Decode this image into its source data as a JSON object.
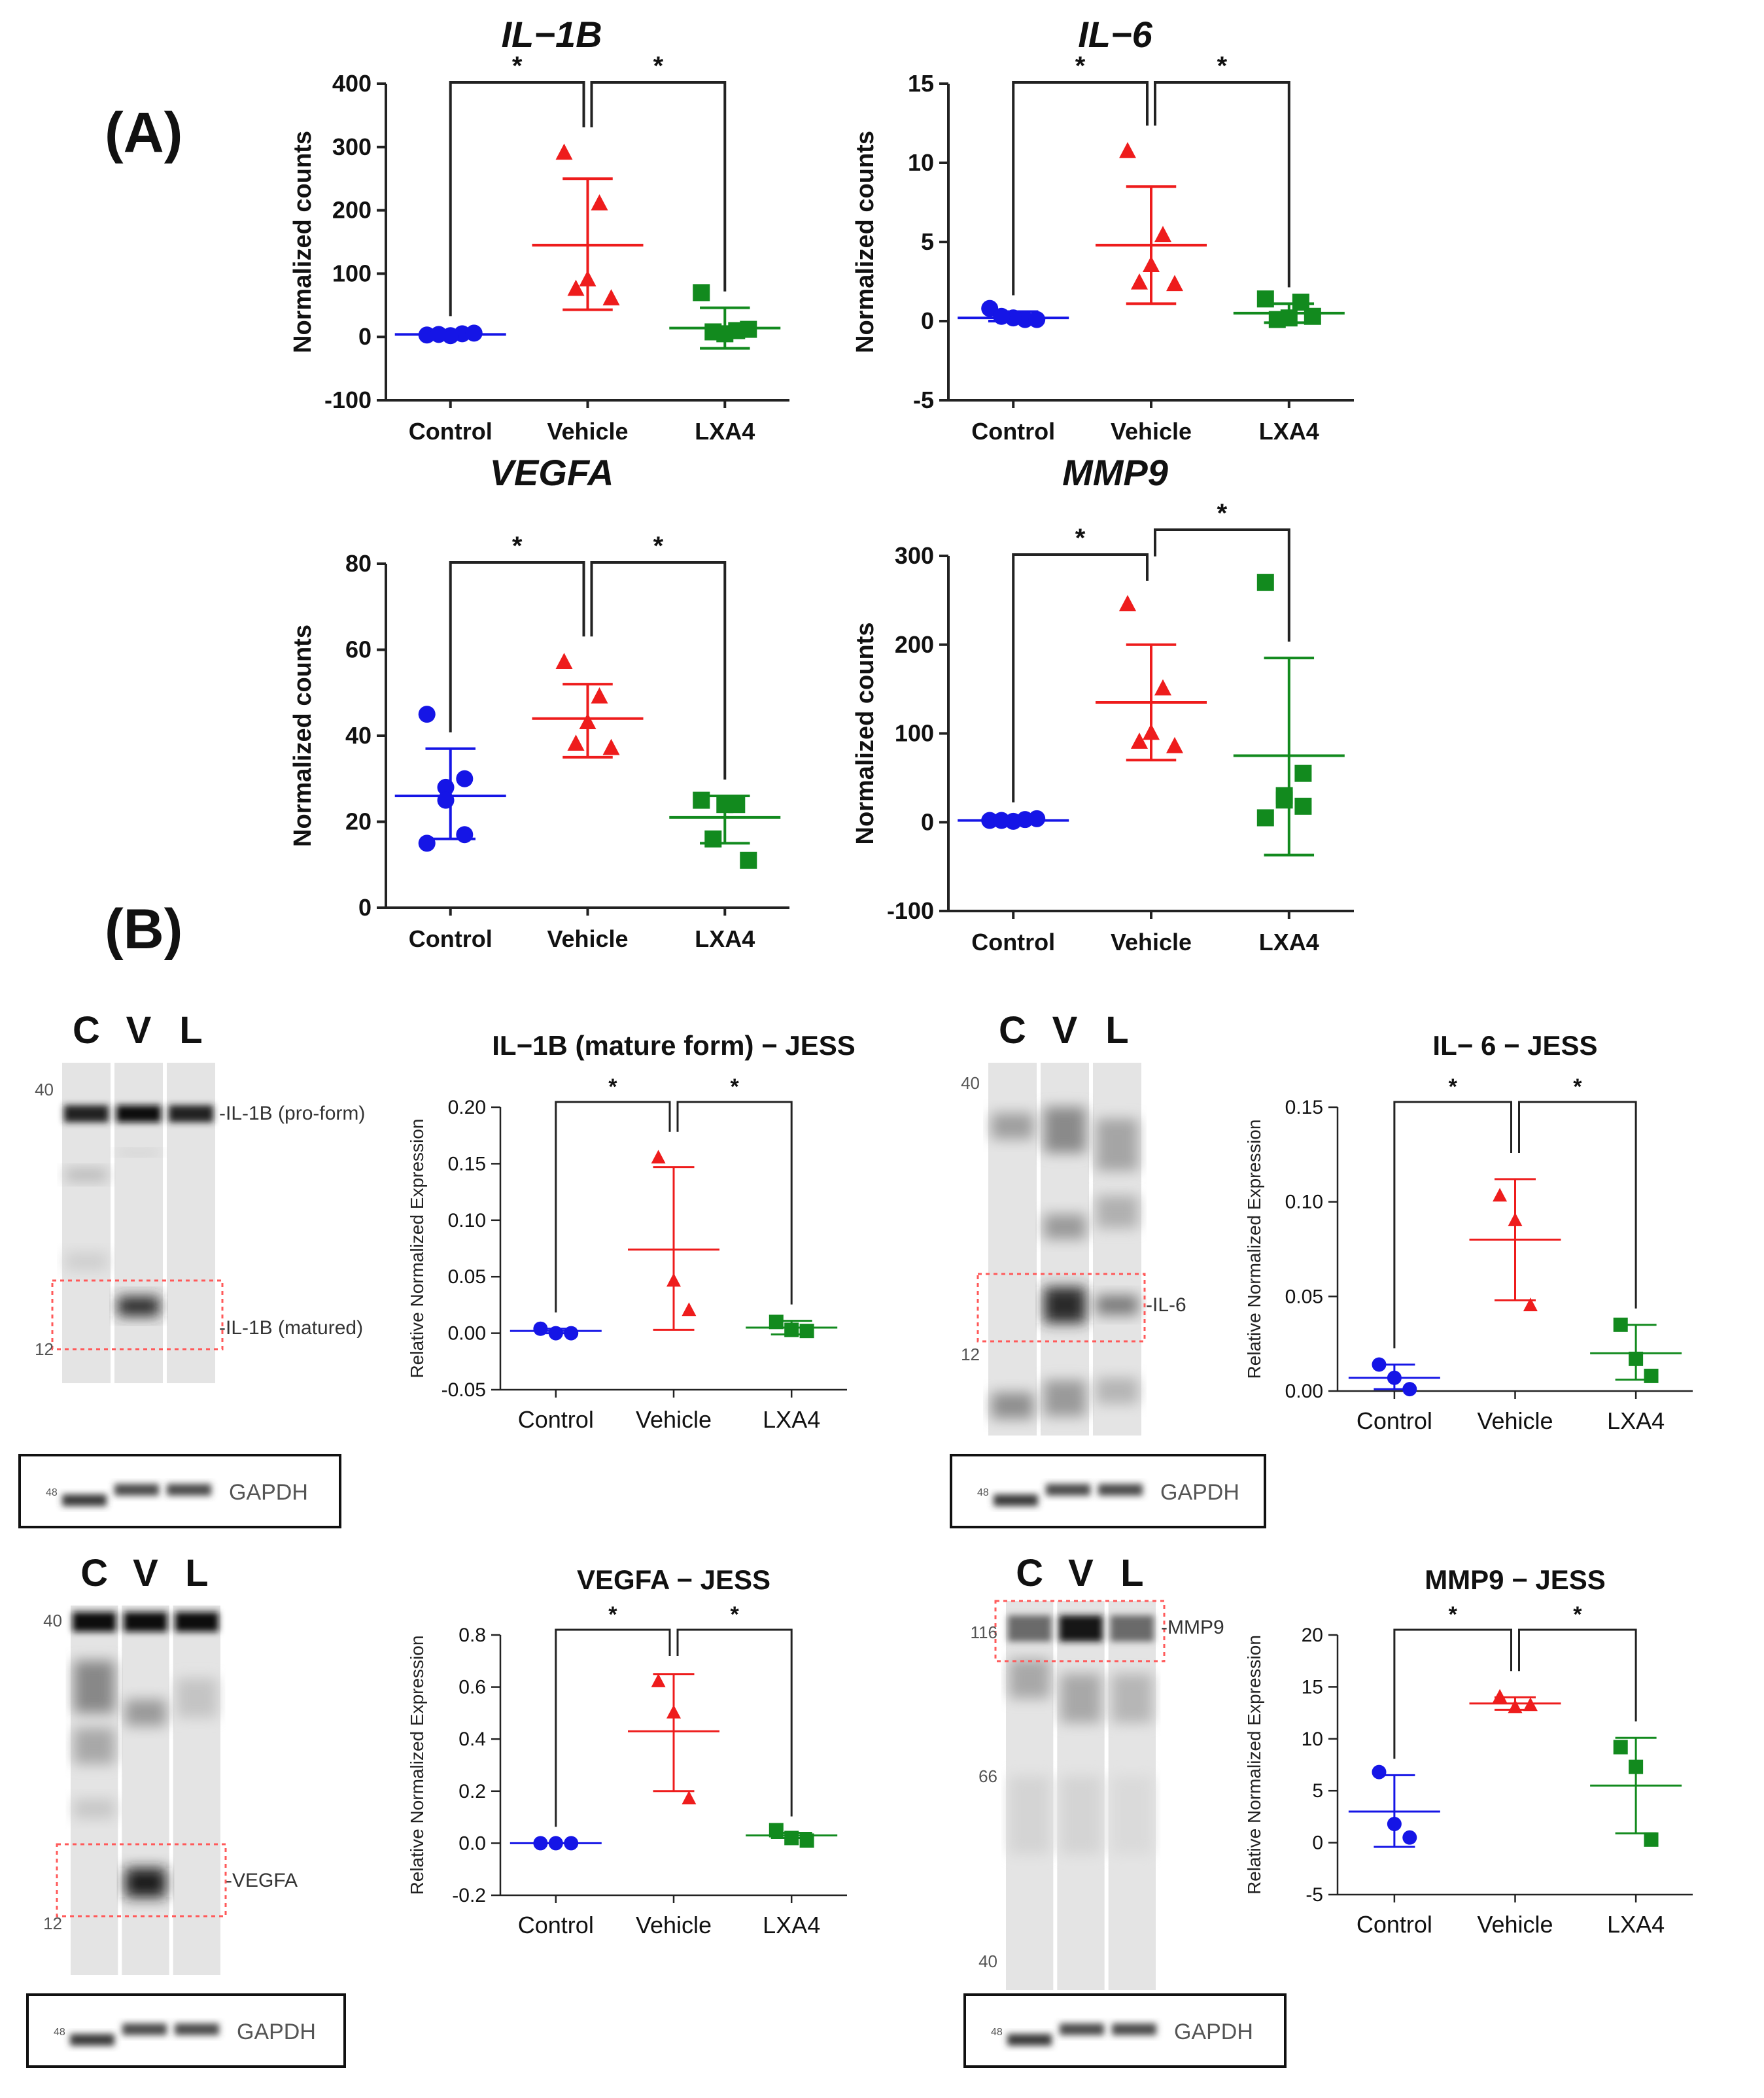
{
  "panels": {
    "a": "(A)",
    "b": "(B)"
  },
  "colors": {
    "control": "#1515e6",
    "vehicle": "#ee1c1c",
    "lxa4": "#128a1e",
    "axis": "#222222"
  },
  "significance": "*",
  "chart_data": [
    {
      "type": "scatter",
      "panel": "A",
      "title": "IL−1B",
      "ylabel": "Normalized counts",
      "categories": [
        "Control",
        "Vehicle",
        "LXA4"
      ],
      "ylim": [
        -100,
        400
      ],
      "yticks": [
        -100,
        0,
        100,
        200,
        300,
        400
      ],
      "series": [
        {
          "name": "Control",
          "shape": "circle",
          "color": "#1515e6",
          "points": [
            3,
            5,
            2,
            4,
            6
          ],
          "mean": 4,
          "err_lo": 2,
          "err_hi": 7
        },
        {
          "name": "Vehicle",
          "shape": "triangle",
          "color": "#ee1c1c",
          "points": [
            290,
            210,
            90,
            75,
            60
          ],
          "mean": 145,
          "err_lo": 43,
          "err_hi": 250
        },
        {
          "name": "LXA4",
          "shape": "square",
          "color": "#128a1e",
          "points": [
            70,
            10,
            5,
            8,
            12
          ],
          "mean": 14,
          "err_lo": -18,
          "err_hi": 46
        }
      ],
      "brackets": [
        [
          "Control",
          "Vehicle"
        ],
        [
          "Vehicle",
          "LXA4"
        ]
      ]
    },
    {
      "type": "scatter",
      "panel": "A",
      "title": "IL−6",
      "ylabel": "Normalized counts",
      "categories": [
        "Control",
        "Vehicle",
        "LXA4"
      ],
      "ylim": [
        -5,
        15
      ],
      "yticks": [
        -5,
        0,
        5,
        10,
        15
      ],
      "series": [
        {
          "name": "Control",
          "shape": "circle",
          "color": "#1515e6",
          "points": [
            0.8,
            0.1,
            0.2,
            0.3,
            0.1
          ],
          "mean": 0.2,
          "err_lo": 0.0,
          "err_hi": 0.6
        },
        {
          "name": "Vehicle",
          "shape": "triangle",
          "color": "#ee1c1c",
          "points": [
            10.7,
            5.4,
            3.5,
            2.4,
            2.3
          ],
          "mean": 4.8,
          "err_lo": 1.1,
          "err_hi": 8.5
        },
        {
          "name": "LXA4",
          "shape": "square",
          "color": "#128a1e",
          "points": [
            1.4,
            1.2,
            0.2,
            0.1,
            0.3
          ],
          "mean": 0.5,
          "err_lo": -0.1,
          "err_hi": 1.1
        }
      ],
      "brackets": [
        [
          "Control",
          "Vehicle"
        ],
        [
          "Vehicle",
          "LXA4"
        ]
      ]
    },
    {
      "type": "scatter",
      "panel": "A",
      "title": "VEGFA",
      "ylabel": "Normalized counts",
      "categories": [
        "Control",
        "Vehicle",
        "LXA4"
      ],
      "ylim": [
        0,
        80
      ],
      "yticks": [
        0,
        20,
        40,
        60,
        80
      ],
      "series": [
        {
          "name": "Control",
          "shape": "circle",
          "color": "#1515e6",
          "points": [
            45,
            30,
            28,
            25,
            17,
            15
          ],
          "mean": 26,
          "err_lo": 16,
          "err_hi": 37
        },
        {
          "name": "Vehicle",
          "shape": "triangle",
          "color": "#ee1c1c",
          "points": [
            57,
            49,
            43,
            38,
            37
          ],
          "mean": 44,
          "err_lo": 35,
          "err_hi": 52
        },
        {
          "name": "LXA4",
          "shape": "square",
          "color": "#128a1e",
          "points": [
            25,
            24,
            24,
            16,
            11
          ],
          "mean": 21,
          "err_lo": 15,
          "err_hi": 26
        }
      ],
      "brackets": [
        [
          "Control",
          "Vehicle"
        ],
        [
          "Vehicle",
          "LXA4"
        ]
      ]
    },
    {
      "type": "scatter",
      "panel": "A",
      "title": "MMP9",
      "ylabel": "Normalized counts",
      "categories": [
        "Control",
        "Vehicle",
        "LXA4"
      ],
      "ylim": [
        -100,
        300
      ],
      "yticks": [
        -100,
        0,
        100,
        200,
        300
      ],
      "series": [
        {
          "name": "Control",
          "shape": "circle",
          "color": "#1515e6",
          "points": [
            2,
            3,
            1,
            2,
            4
          ],
          "mean": 2,
          "err_lo": 0,
          "err_hi": 4
        },
        {
          "name": "Vehicle",
          "shape": "triangle",
          "color": "#ee1c1c",
          "points": [
            245,
            150,
            100,
            90,
            85
          ],
          "mean": 135,
          "err_lo": 70,
          "err_hi": 200
        },
        {
          "name": "LXA4",
          "shape": "square",
          "color": "#128a1e",
          "points": [
            270,
            55,
            30,
            25,
            18,
            5
          ],
          "mean": 75,
          "err_lo": -37,
          "err_hi": 185
        }
      ],
      "brackets": [
        [
          "Control",
          "Vehicle"
        ],
        [
          "Vehicle",
          "LXA4"
        ]
      ]
    },
    {
      "type": "scatter",
      "panel": "B",
      "title": "IL−1B (mature form) − JESS",
      "ylabel": "Relative Normalized Expression",
      "categories": [
        "Control",
        "Vehicle",
        "LXA4"
      ],
      "ylim": [
        -0.05,
        0.2
      ],
      "yticks": [
        -0.05,
        0.0,
        0.05,
        0.1,
        0.15,
        0.2
      ],
      "series": [
        {
          "name": "Control",
          "shape": "circle",
          "color": "#1515e6",
          "points": [
            0.004,
            0.0,
            0.0
          ],
          "mean": 0.002,
          "err_lo": 0.0,
          "err_hi": 0.004
        },
        {
          "name": "Vehicle",
          "shape": "triangle",
          "color": "#ee1c1c",
          "points": [
            0.155,
            0.046,
            0.02
          ],
          "mean": 0.074,
          "err_lo": 0.003,
          "err_hi": 0.147
        },
        {
          "name": "LXA4",
          "shape": "square",
          "color": "#128a1e",
          "points": [
            0.01,
            0.003,
            0.002
          ],
          "mean": 0.005,
          "err_lo": -0.001,
          "err_hi": 0.011
        }
      ],
      "brackets": [
        [
          "Control",
          "Vehicle"
        ],
        [
          "Vehicle",
          "LXA4"
        ]
      ]
    },
    {
      "type": "scatter",
      "panel": "B",
      "title": "IL− 6 − JESS",
      "ylabel": "Relative Normalized Expression",
      "categories": [
        "Control",
        "Vehicle",
        "LXA4"
      ],
      "ylim": [
        0.0,
        0.15
      ],
      "yticks": [
        0.0,
        0.05,
        0.1,
        0.15
      ],
      "series": [
        {
          "name": "Control",
          "shape": "circle",
          "color": "#1515e6",
          "points": [
            0.014,
            0.007,
            0.001
          ],
          "mean": 0.007,
          "err_lo": 0.001,
          "err_hi": 0.014
        },
        {
          "name": "Vehicle",
          "shape": "triangle",
          "color": "#ee1c1c",
          "points": [
            0.103,
            0.09,
            0.045
          ],
          "mean": 0.08,
          "err_lo": 0.048,
          "err_hi": 0.112
        },
        {
          "name": "LXA4",
          "shape": "square",
          "color": "#128a1e",
          "points": [
            0.035,
            0.017,
            0.008
          ],
          "mean": 0.02,
          "err_lo": 0.006,
          "err_hi": 0.035
        }
      ],
      "brackets": [
        [
          "Control",
          "Vehicle"
        ],
        [
          "Vehicle",
          "LXA4"
        ]
      ]
    },
    {
      "type": "scatter",
      "panel": "B",
      "title": "VEGFA − JESS",
      "ylabel": "Relative Normalized Expression",
      "categories": [
        "Control",
        "Vehicle",
        "LXA4"
      ],
      "ylim": [
        -0.2,
        0.8
      ],
      "yticks": [
        -0.2,
        0.0,
        0.2,
        0.4,
        0.6,
        0.8
      ],
      "series": [
        {
          "name": "Control",
          "shape": "circle",
          "color": "#1515e6",
          "points": [
            0.0,
            0.0,
            0.0
          ],
          "mean": 0.0,
          "err_lo": 0.0,
          "err_hi": 0.0
        },
        {
          "name": "Vehicle",
          "shape": "triangle",
          "color": "#ee1c1c",
          "points": [
            0.62,
            0.5,
            0.17
          ],
          "mean": 0.43,
          "err_lo": 0.2,
          "err_hi": 0.65
        },
        {
          "name": "LXA4",
          "shape": "square",
          "color": "#128a1e",
          "points": [
            0.05,
            0.02,
            0.01
          ],
          "mean": 0.03,
          "err_lo": 0.02,
          "err_hi": 0.04
        }
      ],
      "brackets": [
        [
          "Control",
          "Vehicle"
        ],
        [
          "Vehicle",
          "LXA4"
        ]
      ]
    },
    {
      "type": "scatter",
      "panel": "B",
      "title": "MMP9 − JESS",
      "ylabel": "Relative Normalized Expression",
      "categories": [
        "Control",
        "Vehicle",
        "LXA4"
      ],
      "ylim": [
        -5,
        20
      ],
      "yticks": [
        -5,
        0,
        5,
        10,
        15,
        20
      ],
      "series": [
        {
          "name": "Control",
          "shape": "circle",
          "color": "#1515e6",
          "points": [
            6.8,
            1.8,
            0.5
          ],
          "mean": 3.0,
          "err_lo": -0.4,
          "err_hi": 6.5
        },
        {
          "name": "Vehicle",
          "shape": "triangle",
          "color": "#ee1c1c",
          "points": [
            14.0,
            13.0,
            13.2
          ],
          "mean": 13.4,
          "err_lo": 12.8,
          "err_hi": 14.0
        },
        {
          "name": "LXA4",
          "shape": "square",
          "color": "#128a1e",
          "points": [
            9.2,
            7.3,
            0.3
          ],
          "mean": 5.5,
          "err_lo": 0.9,
          "err_hi": 10.1
        }
      ],
      "brackets": [
        [
          "Control",
          "Vehicle"
        ],
        [
          "Vehicle",
          "LXA4"
        ]
      ]
    }
  ],
  "blots": [
    {
      "lanes": [
        "C",
        "V",
        "L"
      ],
      "markers": [
        "40",
        "12"
      ],
      "bands": [
        "IL-1B (pro-form)",
        "IL-1B (matured)"
      ],
      "gapdh": {
        "marker": "48",
        "label": "GAPDH"
      }
    },
    {
      "lanes": [
        "C",
        "V",
        "L"
      ],
      "markers": [
        "40",
        "12"
      ],
      "bands": [
        "IL-6"
      ],
      "gapdh": {
        "marker": "48",
        "label": "GAPDH"
      }
    },
    {
      "lanes": [
        "C",
        "V",
        "L"
      ],
      "markers": [
        "40",
        "12"
      ],
      "bands": [
        "VEGFA"
      ],
      "gapdh": {
        "marker": "48",
        "label": "GAPDH"
      }
    },
    {
      "lanes": [
        "C",
        "V",
        "L"
      ],
      "markers": [
        "116",
        "66",
        "40"
      ],
      "bands": [
        "MMP9"
      ],
      "gapdh": {
        "marker": "48",
        "label": "GAPDH"
      }
    }
  ]
}
